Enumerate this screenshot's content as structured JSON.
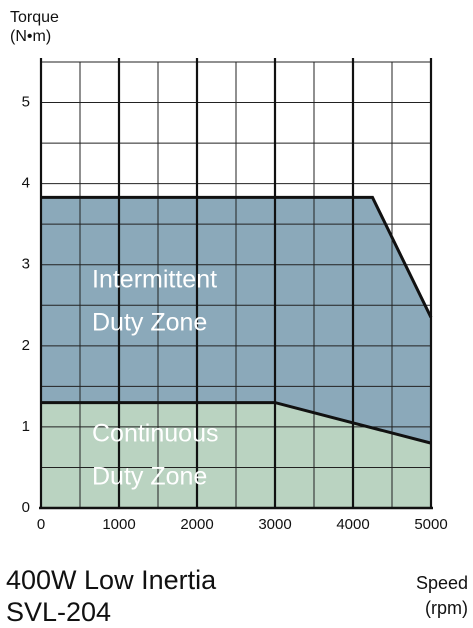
{
  "chart_data": {
    "type": "area",
    "title": "400W Low Inertia",
    "subtitle": "SVL-204",
    "y_label_lines": [
      "Torque",
      "(N•m)"
    ],
    "x_label_lines": [
      "Speed",
      "(rpm)"
    ],
    "xlim": [
      0,
      5000
    ],
    "ylim": [
      0,
      5.5
    ],
    "xticks": [
      0,
      1000,
      2000,
      3000,
      4000,
      5000
    ],
    "yticks": [
      0,
      1,
      2,
      3,
      4,
      5
    ],
    "minor_xticks": [
      500,
      1500,
      2500,
      3500,
      4500
    ],
    "minor_yticks": [
      0.5,
      1.5,
      2.5,
      3.5,
      4.5,
      5.5
    ],
    "grid": true,
    "series": [
      {
        "name_lines": [
          "Intermittent",
          "Duty Zone"
        ],
        "color": "#8ba9ba",
        "x": [
          0,
          4250,
          5000
        ],
        "values": [
          3.83,
          3.83,
          2.35
        ]
      },
      {
        "name_lines": [
          "Continuous",
          "Duty Zone"
        ],
        "color": "#bad3c1",
        "x": [
          0,
          3000,
          5000
        ],
        "values": [
          1.3,
          1.3,
          0.8
        ]
      }
    ]
  }
}
